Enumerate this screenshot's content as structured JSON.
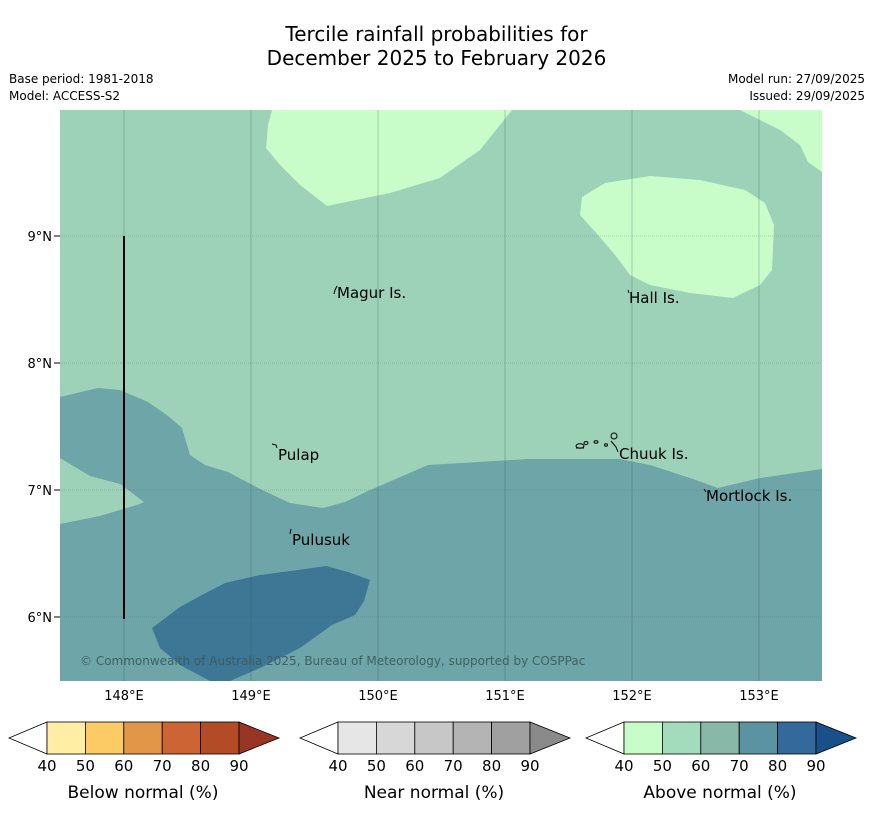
{
  "title": {
    "line1": "Tercile rainfall probabilities for",
    "line2": "December 2025 to February 2026"
  },
  "meta": {
    "base_period": "Base period: 1981-2018",
    "model": "Model: ACCESS-S2",
    "model_run": "Model run: 27/09/2025",
    "issued": "Issued: 29/09/2025"
  },
  "map": {
    "lat_labels": [
      "9°N",
      "8°N",
      "7°N",
      "6°N"
    ],
    "lon_labels": [
      "148°E",
      "149°E",
      "150°E",
      "151°E",
      "152°E",
      "153°E"
    ],
    "places": [
      {
        "name": "Magur Is.",
        "lon": 149.67,
        "lat": 8.56
      },
      {
        "name": "Hall Is.",
        "lon": 151.93,
        "lat": 8.5
      },
      {
        "name": "Pulap",
        "lon": 149.18,
        "lat": 7.33
      },
      {
        "name": "Chuuk Is.",
        "lon": 151.85,
        "lat": 7.35
      },
      {
        "name": "Mortlock Is.",
        "lon": 152.6,
        "lat": 6.97
      },
      {
        "name": "Pulusuk",
        "lon": 149.3,
        "lat": 6.67
      }
    ],
    "copyright": "© Commonwealth of Australia 2025, Bureau of Meteorology, supported by COSPPac",
    "colors": {
      "above_50": "#9dd1b8",
      "above_40": "#c8fcc8",
      "above_70": "#6ea5a8",
      "above_80": "#3e7796"
    }
  },
  "colorbars": [
    {
      "title": "Below normal (%)",
      "ticks": [
        "40",
        "50",
        "60",
        "70",
        "80",
        "90"
      ],
      "colors": [
        "#ffffff",
        "#ffeea3",
        "#fdcb66",
        "#e29647",
        "#cd6433",
        "#b34b27",
        "#993525"
      ]
    },
    {
      "title": "Near normal (%)",
      "ticks": [
        "40",
        "50",
        "60",
        "70",
        "80",
        "90"
      ],
      "colors": [
        "#ffffff",
        "#e6e6e6",
        "#d7d7d7",
        "#c7c7c7",
        "#b4b4b4",
        "#a0a0a0",
        "#8a8a8a"
      ]
    },
    {
      "title": "Above normal (%)",
      "ticks": [
        "40",
        "50",
        "60",
        "70",
        "80",
        "90"
      ],
      "colors": [
        "#ffffff",
        "#c8fcc8",
        "#a3dbbd",
        "#87b8a8",
        "#5b93a3",
        "#346a9b",
        "#19508a"
      ]
    }
  ]
}
